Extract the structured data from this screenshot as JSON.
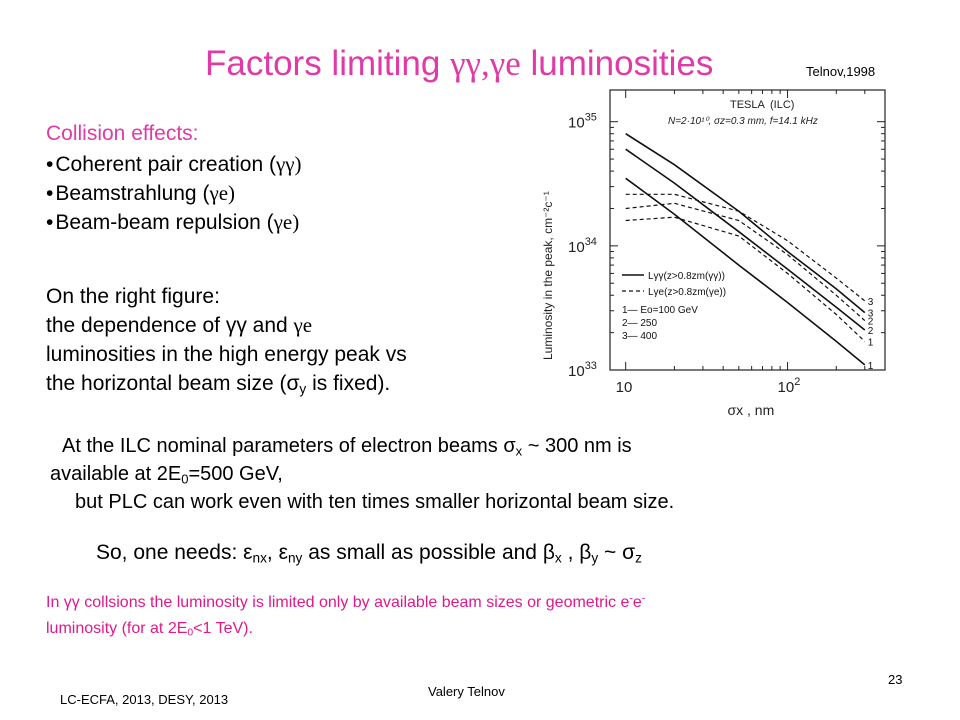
{
  "slide": {
    "title_prefix": "Factors limiting ",
    "title_greek": "γγ,γe",
    "title_suffix": " luminosities",
    "credit": "Telnov,1998",
    "page_number": "23",
    "footer_left": "LC-ECFA, 2013, DESY, 2013",
    "footer_author": "Valery Telnov"
  },
  "effects": {
    "heading": "Collision effects:",
    "items": [
      {
        "bullet": "•",
        "text": "Coherent pair creation (",
        "greek": "γγ",
        "close": ")"
      },
      {
        "bullet": "•",
        "text": "Beamstrahlung (",
        "greek": "γe",
        "close": ")"
      },
      {
        "bullet": "•",
        "text": "Beam-beam repulsion (",
        "greek": "γe",
        "close": ")"
      }
    ]
  },
  "paragraph": {
    "line1": "On the right figure:",
    "line2_a": "the dependence of γγ and ",
    "line2_greek": "γe",
    "line3": "luminosities in the high energy peak vs",
    "line4_a": "the horizontal beam size (σ",
    "line4_sub": "y",
    "line4_b": " is fixed)."
  },
  "ilc": {
    "l1_a": "At the ILC nominal parameters of electron beams σ",
    "l1_sub": "x",
    "l1_b": " ~ 300 nm is",
    "l2_a": "available at 2E",
    "l2_sub": "0",
    "l2_b": "=500 GeV,",
    "l3": "but PLC can work even with ten times smaller horizontal beam size."
  },
  "needs": {
    "a": "So, one needs: ε",
    "s1": "nx",
    "b": ", ε",
    "s2": "ny",
    "c": " as small as possible and β",
    "s3": "x",
    "d": " , β",
    "s4": "y",
    "e": " ~ σ",
    "s5": "z"
  },
  "note": {
    "l1_a": "In γγ collsions the luminosity is limited only by available beam sizes or geometric e",
    "l1_sup1": "-",
    "l1_b": "e",
    "l1_sup2": "-",
    "l2_a": "luminosity (for at 2E",
    "l2_sub": "0",
    "l2_b": "<1 TeV)."
  },
  "chart_data": {
    "type": "line",
    "header": "TESLA",
    "header_note": "(ILC)",
    "params": "N=2·10¹⁰, σz=0.3 mm, f=14.1 kHz",
    "ylabel": "Luminosity in the peak, cm⁻²c⁻¹",
    "xlabel": "σx , nm",
    "x_scale": "log",
    "y_scale": "log",
    "xlim": [
      8,
      400
    ],
    "ylim": [
      1e+33,
      1.8e+35
    ],
    "x_tick_labels": [
      {
        "v": 10,
        "text": "10"
      },
      {
        "v": 100,
        "text": "10",
        "sup": "2"
      }
    ],
    "y_tick_labels": [
      {
        "v": 1e+33,
        "text": "10",
        "sup": "33"
      },
      {
        "v": 1e+34,
        "text": "10",
        "sup": "34"
      },
      {
        "v": 1e+35,
        "text": "10",
        "sup": "35"
      }
    ],
    "legend": {
      "solid": "Lγγ(z>0.8zm(γγ))",
      "dashed": "Lγe(z>0.8zm(γe))",
      "energies": [
        "1— Eo=100 GeV",
        "2—      250",
        "3—      400"
      ]
    },
    "series": [
      {
        "style": "solid",
        "label": "3",
        "x": [
          10,
          20,
          50,
          100,
          200,
          300
        ],
        "y": [
          8e+34,
          4.5e+34,
          1.9e+34,
          9e+33,
          4.5e+33,
          2.9e+33
        ]
      },
      {
        "style": "solid",
        "label": "2",
        "x": [
          10,
          20,
          50,
          100,
          200,
          300
        ],
        "y": [
          6e+34,
          3.2e+34,
          1.3e+34,
          6.5e+33,
          3.2e+33,
          2.1e+33
        ]
      },
      {
        "style": "solid",
        "label": "1",
        "x": [
          10,
          20,
          50,
          100,
          200,
          300
        ],
        "y": [
          3.5e+34,
          1.8e+34,
          7e+33,
          3.5e+33,
          1.7e+33,
          1.1e+33
        ]
      },
      {
        "style": "dashed",
        "label": "3",
        "x": [
          10,
          20,
          50,
          100,
          200,
          300
        ],
        "y": [
          2.6e+34,
          2.6e+34,
          1.9e+34,
          1.1e+34,
          5.5e+33,
          3.6e+33
        ]
      },
      {
        "style": "dashed",
        "label": "2",
        "x": [
          10,
          20,
          50,
          100,
          200,
          300
        ],
        "y": [
          2e+34,
          2.2e+34,
          1.6e+34,
          8.5e+33,
          4e+33,
          2.5e+33
        ]
      },
      {
        "style": "dashed",
        "label": "1",
        "x": [
          10,
          20,
          50,
          100,
          200,
          300
        ],
        "y": [
          1.6e+34,
          1.7e+34,
          1.2e+34,
          6e+33,
          2.8e+33,
          1.7e+33
        ]
      }
    ],
    "grid": false
  }
}
